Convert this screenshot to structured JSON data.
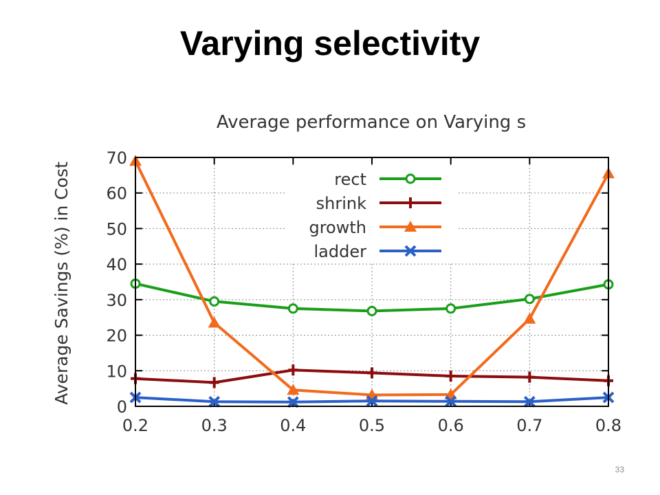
{
  "slide": {
    "title": "Varying selectivity",
    "page_number": "33"
  },
  "chart_data": {
    "type": "line",
    "title": "Average performance on Varying s",
    "xlabel": "",
    "ylabel": "Average Savings (%) in Cost",
    "x": [
      0.2,
      0.3,
      0.4,
      0.5,
      0.6,
      0.7,
      0.8
    ],
    "x_tick_labels": [
      "0.2",
      "0.3",
      "0.4",
      "0.5",
      "0.6",
      "0.7",
      "0.8"
    ],
    "xlim": [
      0.2,
      0.8
    ],
    "ylim": [
      0,
      70
    ],
    "y_ticks": [
      0,
      10,
      20,
      30,
      40,
      50,
      60,
      70
    ],
    "y_tick_labels": [
      "0",
      "10",
      "20",
      "30",
      "40",
      "50",
      "60",
      "70"
    ],
    "grid": true,
    "legend_position": "top-center",
    "series": [
      {
        "name": "rect",
        "color": "#1a9e1a",
        "marker": "circle",
        "values": [
          34.5,
          29.5,
          27.5,
          26.8,
          27.5,
          30.2,
          34.3
        ]
      },
      {
        "name": "shrink",
        "color": "#8b0d0d",
        "marker": "plus",
        "values": [
          7.8,
          6.7,
          10.2,
          9.4,
          8.5,
          8.2,
          7.2
        ]
      },
      {
        "name": "growth",
        "color": "#f26a1b",
        "marker": "triangle",
        "values": [
          69.0,
          23.5,
          4.6,
          3.2,
          3.3,
          24.6,
          65.5
        ]
      },
      {
        "name": "ladder",
        "color": "#2b60c8",
        "marker": "x",
        "values": [
          2.5,
          1.3,
          1.2,
          1.5,
          1.4,
          1.3,
          2.5
        ]
      }
    ]
  }
}
